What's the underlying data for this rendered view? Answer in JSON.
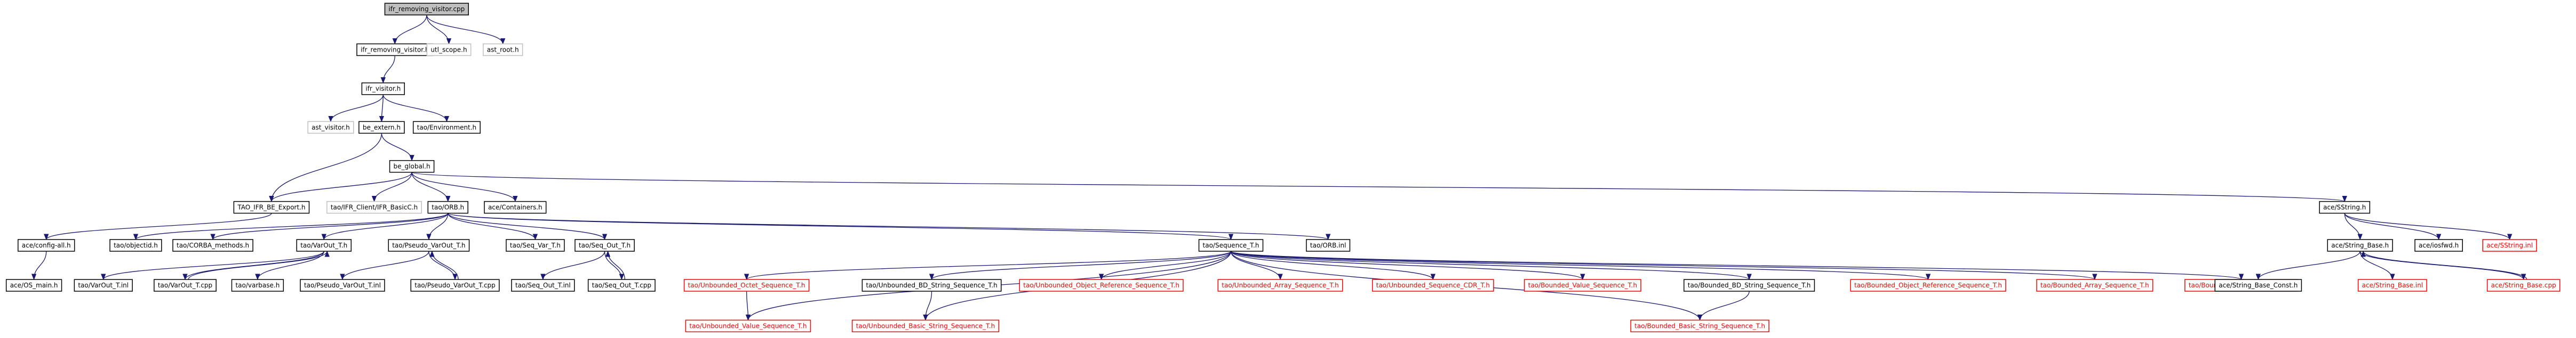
{
  "graph": {
    "title": "",
    "colors": {
      "edge": "#191970",
      "text": "#000000",
      "link_text": "#ff0000",
      "border": "#000000",
      "border_missing": "#bfbfbf",
      "border_link": "#ff0000",
      "root_fill": "#bfbfbf",
      "node_fill": "#ffffff"
    },
    "nodes": [
      {
        "id": "root",
        "label": "ifr_removing_visitor.cpp",
        "style": "root"
      },
      {
        "id": "n_ifr_removing_visitor_h",
        "label": "ifr_removing_visitor.h",
        "style": "normal"
      },
      {
        "id": "n_utl_scope_h",
        "label": "utl_scope.h",
        "style": "missing"
      },
      {
        "id": "n_ast_root_h",
        "label": "ast_root.h",
        "style": "missing"
      },
      {
        "id": "n_ifr_visitor_h",
        "label": "ifr_visitor.h",
        "style": "normal"
      },
      {
        "id": "n_ast_visitor_h",
        "label": "ast_visitor.h",
        "style": "missing"
      },
      {
        "id": "n_be_extern_h",
        "label": "be_extern.h",
        "style": "normal"
      },
      {
        "id": "n_tao_environment_h",
        "label": "tao/Environment.h",
        "style": "normal"
      },
      {
        "id": "n_be_global_h",
        "label": "be_global.h",
        "style": "normal"
      },
      {
        "id": "n_tao_ifr_be_export_h",
        "label": "TAO_IFR_BE_Export.h",
        "style": "normal"
      },
      {
        "id": "n_ifr_client_h",
        "label": "tao/IFR_Client/IFR_BasicC.h",
        "style": "missing"
      },
      {
        "id": "n_tao_orb_h",
        "label": "tao/ORB.h",
        "style": "normal"
      },
      {
        "id": "n_ace_containers_h",
        "label": "ace/Containers.h",
        "style": "normal"
      },
      {
        "id": "n_ace_sstring_h",
        "label": "ace/SString.h",
        "style": "normal"
      },
      {
        "id": "n_ace_config_all_h",
        "label": "ace/config-all.h",
        "style": "normal"
      },
      {
        "id": "n_tao_objectid_h",
        "label": "tao/objectid.h",
        "style": "normal"
      },
      {
        "id": "n_tao_corba_methods_h",
        "label": "tao/CORBA_methods.h",
        "style": "normal"
      },
      {
        "id": "n_tao_varout_t_h",
        "label": "tao/VarOut_T.h",
        "style": "normal"
      },
      {
        "id": "n_tao_pseudo_varout_t_h",
        "label": "tao/Pseudo_VarOut_T.h",
        "style": "normal"
      },
      {
        "id": "n_tao_seq_var_t_h",
        "label": "tao/Seq_Var_T.h",
        "style": "normal"
      },
      {
        "id": "n_tao_seq_out_t_h",
        "label": "tao/Seq_Out_T.h",
        "style": "normal"
      },
      {
        "id": "n_tao_sequence_t_h",
        "label": "tao/Sequence_T.h",
        "style": "normal"
      },
      {
        "id": "n_tao_orb_inl",
        "label": "tao/ORB.inl",
        "style": "normal"
      },
      {
        "id": "n_ace_string_base_h",
        "label": "ace/String_Base.h",
        "style": "normal"
      },
      {
        "id": "n_ace_iosfwd_h",
        "label": "ace/iosfwd.h",
        "style": "normal"
      },
      {
        "id": "n_ace_sstring_inl",
        "label": "ace/SString.inl",
        "style": "link"
      },
      {
        "id": "n_ace_os_main_h",
        "label": "ace/OS_main.h",
        "style": "normal"
      },
      {
        "id": "n_tao_varout_t_inl",
        "label": "tao/VarOut_T.inl",
        "style": "normal"
      },
      {
        "id": "n_tao_varout_t_cpp",
        "label": "tao/VarOut_T.cpp",
        "style": "normal"
      },
      {
        "id": "n_tao_varbase_h",
        "label": "tao/varbase.h",
        "style": "normal"
      },
      {
        "id": "n_tao_pseudo_varout_t_inl",
        "label": "tao/Pseudo_VarOut_T.inl",
        "style": "normal"
      },
      {
        "id": "n_tao_pseudo_varout_t_cpp",
        "label": "tao/Pseudo_VarOut_T.cpp",
        "style": "normal"
      },
      {
        "id": "n_tao_seq_out_t_inl",
        "label": "tao/Seq_Out_T.inl",
        "style": "normal"
      },
      {
        "id": "n_tao_seq_out_t_cpp",
        "label": "tao/Seq_Out_T.cpp",
        "style": "normal"
      },
      {
        "id": "n_tao_unb_octet_seq_h",
        "label": "tao/Unbounded_Octet_Sequence_T.h",
        "style": "link"
      },
      {
        "id": "n_tao_unb_bd_string_seq_h",
        "label": "tao/Unbounded_BD_String_Sequence_T.h",
        "style": "normal"
      },
      {
        "id": "n_tao_unb_objref_seq_h",
        "label": "tao/Unbounded_Object_Reference_Sequence_T.h",
        "style": "link"
      },
      {
        "id": "n_tao_unb_array_seq_h",
        "label": "tao/Unbounded_Array_Sequence_T.h",
        "style": "link"
      },
      {
        "id": "n_tao_unb_seq_cdr_h",
        "label": "tao/Unbounded_Sequence_CDR_T.h",
        "style": "link"
      },
      {
        "id": "n_tao_bd_value_seq_h",
        "label": "tao/Bounded_Value_Sequence_T.h",
        "style": "link"
      },
      {
        "id": "n_tao_bd_bd_string_seq_h",
        "label": "tao/Bounded_BD_String_Sequence_T.h",
        "style": "normal"
      },
      {
        "id": "n_tao_bd_objref_seq_h",
        "label": "tao/Bounded_Object_Reference_Sequence_T.h",
        "style": "link"
      },
      {
        "id": "n_tao_bd_array_seq_h",
        "label": "tao/Bounded_Array_Sequence_T.h",
        "style": "link"
      },
      {
        "id": "n_tao_bd_seq_cdr_h",
        "label": "tao/Bounded_Sequence_CDR_T.h",
        "style": "link"
      },
      {
        "id": "n_ace_string_base_const_h",
        "label": "ace/String_Base_Const.h",
        "style": "normal"
      },
      {
        "id": "n_ace_string_base_inl",
        "label": "ace/String_Base.inl",
        "style": "link"
      },
      {
        "id": "n_ace_string_base_cpp",
        "label": "ace/String_Base.cpp",
        "style": "link"
      },
      {
        "id": "n_tao_unb_value_seq_h",
        "label": "tao/Unbounded_Value_Sequence_T.h",
        "style": "link"
      },
      {
        "id": "n_tao_unb_basic_string_seq_h",
        "label": "tao/Unbounded_Basic_String_Sequence_T.h",
        "style": "link"
      },
      {
        "id": "n_tao_bd_basic_string_seq_h",
        "label": "tao/Bounded_Basic_String_Sequence_T.h",
        "style": "link"
      }
    ],
    "edges": [
      [
        "root",
        "n_ifr_removing_visitor_h"
      ],
      [
        "root",
        "n_utl_scope_h"
      ],
      [
        "root",
        "n_ast_root_h"
      ],
      [
        "n_ifr_removing_visitor_h",
        "n_ifr_visitor_h"
      ],
      [
        "n_ifr_visitor_h",
        "n_ast_visitor_h"
      ],
      [
        "n_ifr_visitor_h",
        "n_be_extern_h"
      ],
      [
        "n_ifr_visitor_h",
        "n_tao_environment_h"
      ],
      [
        "n_be_extern_h",
        "n_be_global_h"
      ],
      [
        "n_be_extern_h",
        "n_tao_ifr_be_export_h"
      ],
      [
        "n_be_global_h",
        "n_tao_ifr_be_export_h"
      ],
      [
        "n_be_global_h",
        "n_ifr_client_h"
      ],
      [
        "n_be_global_h",
        "n_tao_orb_h"
      ],
      [
        "n_be_global_h",
        "n_ace_containers_h"
      ],
      [
        "n_be_global_h",
        "n_ace_sstring_h"
      ],
      [
        "n_tao_ifr_be_export_h",
        "n_ace_config_all_h"
      ],
      [
        "n_ace_config_all_h",
        "n_ace_os_main_h"
      ],
      [
        "n_tao_orb_h",
        "n_tao_objectid_h"
      ],
      [
        "n_tao_orb_h",
        "n_tao_corba_methods_h"
      ],
      [
        "n_tao_orb_h",
        "n_tao_varout_t_h"
      ],
      [
        "n_tao_orb_h",
        "n_tao_pseudo_varout_t_h"
      ],
      [
        "n_tao_orb_h",
        "n_tao_seq_var_t_h"
      ],
      [
        "n_tao_orb_h",
        "n_tao_seq_out_t_h"
      ],
      [
        "n_tao_orb_h",
        "n_tao_sequence_t_h"
      ],
      [
        "n_tao_orb_h",
        "n_tao_orb_inl"
      ],
      [
        "n_tao_varout_t_h",
        "n_tao_varout_t_inl"
      ],
      [
        "n_tao_varout_t_h",
        "n_tao_varout_t_cpp"
      ],
      [
        "n_tao_varout_t_cpp",
        "n_tao_varout_t_h"
      ],
      [
        "n_tao_varout_t_h",
        "n_tao_varbase_h"
      ],
      [
        "n_tao_pseudo_varout_t_h",
        "n_tao_pseudo_varout_t_inl"
      ],
      [
        "n_tao_pseudo_varout_t_h",
        "n_tao_pseudo_varout_t_cpp"
      ],
      [
        "n_tao_pseudo_varout_t_cpp",
        "n_tao_pseudo_varout_t_h"
      ],
      [
        "n_tao_seq_out_t_h",
        "n_tao_seq_out_t_inl"
      ],
      [
        "n_tao_seq_out_t_h",
        "n_tao_seq_out_t_cpp"
      ],
      [
        "n_tao_seq_out_t_cpp",
        "n_tao_seq_out_t_h"
      ],
      [
        "n_tao_sequence_t_h",
        "n_tao_unb_octet_seq_h"
      ],
      [
        "n_tao_sequence_t_h",
        "n_tao_unb_bd_string_seq_h"
      ],
      [
        "n_tao_sequence_t_h",
        "n_tao_unb_objref_seq_h"
      ],
      [
        "n_tao_sequence_t_h",
        "n_tao_unb_array_seq_h"
      ],
      [
        "n_tao_sequence_t_h",
        "n_tao_unb_seq_cdr_h"
      ],
      [
        "n_tao_sequence_t_h",
        "n_tao_bd_value_seq_h"
      ],
      [
        "n_tao_sequence_t_h",
        "n_tao_bd_bd_string_seq_h"
      ],
      [
        "n_tao_sequence_t_h",
        "n_tao_bd_objref_seq_h"
      ],
      [
        "n_tao_sequence_t_h",
        "n_tao_bd_array_seq_h"
      ],
      [
        "n_tao_sequence_t_h",
        "n_tao_bd_seq_cdr_h"
      ],
      [
        "n_tao_sequence_t_h",
        "n_tao_unb_value_seq_h"
      ],
      [
        "n_tao_sequence_t_h",
        "n_tao_unb_basic_string_seq_h"
      ],
      [
        "n_tao_sequence_t_h",
        "n_tao_bd_basic_string_seq_h"
      ],
      [
        "n_tao_unb_octet_seq_h",
        "n_tao_unb_value_seq_h"
      ],
      [
        "n_tao_unb_bd_string_seq_h",
        "n_tao_unb_basic_string_seq_h"
      ],
      [
        "n_tao_bd_bd_string_seq_h",
        "n_tao_bd_basic_string_seq_h"
      ],
      [
        "n_ace_sstring_h",
        "n_ace_string_base_h"
      ],
      [
        "n_ace_sstring_h",
        "n_ace_iosfwd_h"
      ],
      [
        "n_ace_sstring_h",
        "n_ace_sstring_inl"
      ],
      [
        "n_ace_string_base_h",
        "n_ace_string_base_const_h"
      ],
      [
        "n_ace_string_base_h",
        "n_ace_string_base_inl"
      ],
      [
        "n_ace_string_base_h",
        "n_ace_string_base_cpp"
      ],
      [
        "n_ace_string_base_cpp",
        "n_ace_string_base_h"
      ]
    ]
  }
}
